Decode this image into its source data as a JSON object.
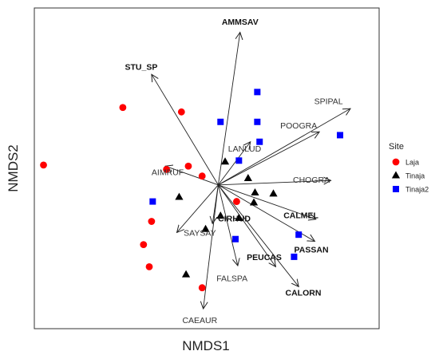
{
  "chart_data": {
    "type": "scatter",
    "xlabel": "NMDS1",
    "ylabel": "NMDS2",
    "xlim": [
      -1.6,
      1.4
    ],
    "ylim": [
      -1.3,
      1.6
    ],
    "origin": [
      0,
      0
    ],
    "grid": false,
    "legend": {
      "title": "Site",
      "position": "right",
      "entries": [
        {
          "name": "Laja",
          "marker": "circle",
          "color": "#ff0000"
        },
        {
          "name": "Tinaja",
          "marker": "triangle",
          "color": "#000000"
        },
        {
          "name": "Tinaja2",
          "marker": "square",
          "color": "#0000ff"
        }
      ]
    },
    "series": [
      {
        "name": "Laja",
        "marker": "circle",
        "color": "#ff0000",
        "points": [
          [
            -1.52,
            0.18
          ],
          [
            -0.83,
            0.7
          ],
          [
            -0.32,
            0.66
          ],
          [
            -0.45,
            0.14
          ],
          [
            -0.26,
            0.17
          ],
          [
            -0.14,
            0.08
          ],
          [
            0.16,
            -0.15
          ],
          [
            -0.58,
            -0.33
          ],
          [
            -0.65,
            -0.54
          ],
          [
            -0.6,
            -0.74
          ],
          [
            -0.14,
            -0.93
          ]
        ]
      },
      {
        "name": "Tinaja",
        "marker": "triangle",
        "color": "#000000",
        "points": [
          [
            0.06,
            0.21
          ],
          [
            0.26,
            0.06
          ],
          [
            0.32,
            -0.07
          ],
          [
            0.48,
            -0.08
          ],
          [
            0.31,
            -0.16
          ],
          [
            -0.34,
            -0.11
          ],
          [
            0.02,
            -0.28
          ],
          [
            0.18,
            -0.3
          ],
          [
            -0.11,
            -0.4
          ],
          [
            -0.28,
            -0.81
          ]
        ]
      },
      {
        "name": "Tinaja2",
        "marker": "square",
        "color": "#0000ff",
        "points": [
          [
            0.34,
            0.84
          ],
          [
            0.02,
            0.57
          ],
          [
            0.34,
            0.57
          ],
          [
            0.36,
            0.39
          ],
          [
            0.18,
            0.22
          ],
          [
            1.06,
            0.45
          ],
          [
            -0.57,
            -0.15
          ],
          [
            0.15,
            -0.49
          ],
          [
            0.7,
            -0.45
          ],
          [
            0.66,
            -0.65
          ]
        ]
      }
    ],
    "vectors": [
      {
        "label": "AMMSAV",
        "bold": true,
        "end": [
          0.19,
          1.38
        ],
        "label_pos": [
          0.19,
          1.47
        ]
      },
      {
        "label": "STU_SP",
        "bold": true,
        "end": [
          -0.58,
          1.0
        ],
        "label_pos": [
          -0.67,
          1.06
        ]
      },
      {
        "label": "SPIPAL",
        "bold": false,
        "end": [
          1.15,
          0.69
        ],
        "label_pos": [
          0.96,
          0.75
        ]
      },
      {
        "label": "POOGRA",
        "bold": false,
        "end": [
          0.88,
          0.48
        ],
        "label_pos": [
          0.7,
          0.53
        ]
      },
      {
        "label": "LANLUD",
        "bold": false,
        "end": [
          0.28,
          0.39
        ],
        "label_pos": [
          0.23,
          0.32
        ]
      },
      {
        "label": "AIMRUF",
        "bold": false,
        "end": [
          -0.46,
          0.17
        ],
        "label_pos": [
          -0.44,
          0.11
        ]
      },
      {
        "label": "CHOGRA",
        "bold": false,
        "end": [
          0.98,
          0.04
        ],
        "label_pos": [
          0.81,
          0.04
        ]
      },
      {
        "label": "CALMEL",
        "bold": true,
        "end": [
          0.85,
          -0.31
        ],
        "label_pos": [
          0.72,
          -0.28
        ]
      },
      {
        "label": "CIRHUD",
        "bold": true,
        "end": [
          -0.05,
          -0.35
        ],
        "label_pos": [
          0.14,
          -0.31
        ]
      },
      {
        "label": "PASSAN",
        "bold": true,
        "end": [
          0.84,
          -0.51
        ],
        "label_pos": [
          0.81,
          -0.59
        ]
      },
      {
        "label": "SAYSAY",
        "bold": false,
        "end": [
          -0.36,
          -0.43
        ],
        "label_pos": [
          -0.16,
          -0.44
        ]
      },
      {
        "label": "PEUCAS",
        "bold": true,
        "end": [
          0.5,
          -0.74
        ],
        "label_pos": [
          0.4,
          -0.66
        ]
      },
      {
        "label": "FALSPA",
        "bold": false,
        "end": [
          0.17,
          -0.73
        ],
        "label_pos": [
          0.12,
          -0.85
        ]
      },
      {
        "label": "CALORN",
        "bold": true,
        "end": [
          0.7,
          -0.92
        ],
        "label_pos": [
          0.74,
          -0.98
        ]
      },
      {
        "label": "CAEAUR",
        "bold": false,
        "end": [
          -0.13,
          -1.12
        ],
        "label_pos": [
          -0.16,
          -1.23
        ]
      }
    ]
  }
}
